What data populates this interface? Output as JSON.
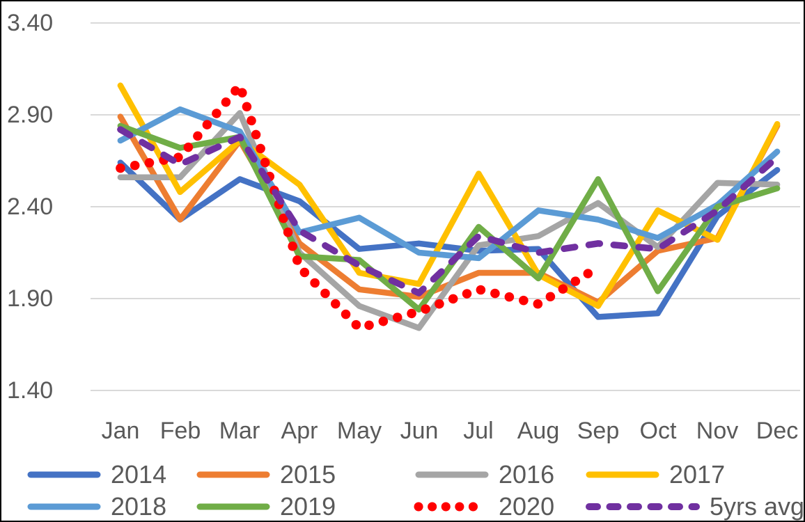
{
  "chart_data": {
    "type": "line",
    "title": "",
    "categories": [
      "Jan",
      "Feb",
      "Mar",
      "Apr",
      "May",
      "Jun",
      "Jul",
      "Aug",
      "Sep",
      "Oct",
      "Nov",
      "Dec"
    ],
    "y_axis": {
      "min": 1.4,
      "max": 3.4,
      "step": 0.5,
      "tick_values": [
        3.4,
        2.9,
        2.4,
        1.9,
        1.4
      ],
      "tick_labels": [
        "3.40",
        "2.90",
        "2.40",
        "1.90",
        "1.40"
      ]
    },
    "grid": "horizontal",
    "gridline_color": "#D9D9D9",
    "axis_text_color": "#595959",
    "legend_position": "bottom",
    "series": [
      {
        "name": "2014",
        "color": "#4472C4",
        "line_style": "solid",
        "values": [
          2.64,
          2.33,
          2.55,
          2.43,
          2.17,
          2.2,
          2.16,
          2.17,
          1.8,
          1.82,
          2.35,
          2.6
        ]
      },
      {
        "name": "2015",
        "color": "#ED7D31",
        "line_style": "solid",
        "values": [
          2.89,
          2.33,
          2.76,
          2.2,
          1.95,
          1.91,
          2.04,
          2.04,
          1.88,
          2.16,
          2.23,
          2.84
        ]
      },
      {
        "name": "2016",
        "color": "#A5A5A5",
        "line_style": "solid",
        "values": [
          2.56,
          2.56,
          2.91,
          2.15,
          1.86,
          1.74,
          2.19,
          2.24,
          2.42,
          2.18,
          2.53,
          2.52
        ]
      },
      {
        "name": "2017",
        "color": "#FFC000",
        "line_style": "solid",
        "values": [
          3.06,
          2.48,
          2.76,
          2.52,
          2.04,
          1.98,
          2.58,
          2.03,
          1.86,
          2.38,
          2.22,
          2.85
        ]
      },
      {
        "name": "2018",
        "color": "#5B9BD5",
        "line_style": "solid",
        "values": [
          2.76,
          2.93,
          2.81,
          2.26,
          2.34,
          2.15,
          2.12,
          2.38,
          2.33,
          2.23,
          2.41,
          2.7
        ]
      },
      {
        "name": "2019",
        "color": "#70AD47",
        "line_style": "solid",
        "values": [
          2.84,
          2.72,
          2.78,
          2.13,
          2.11,
          1.84,
          2.29,
          2.01,
          2.55,
          1.94,
          2.4,
          2.5
        ]
      },
      {
        "name": "2020",
        "color": "#FF0000",
        "line_style": "dotted",
        "values": [
          2.61,
          2.67,
          3.06,
          2.07,
          1.74,
          1.83,
          1.95,
          1.87,
          2.07,
          null,
          null,
          null
        ]
      },
      {
        "name": "5yrs avg",
        "color": "#7030A0",
        "line_style": "dashed",
        "values": [
          2.82,
          2.63,
          2.78,
          2.27,
          2.08,
          1.93,
          2.24,
          2.15,
          2.2,
          2.17,
          2.38,
          2.67
        ]
      }
    ]
  }
}
